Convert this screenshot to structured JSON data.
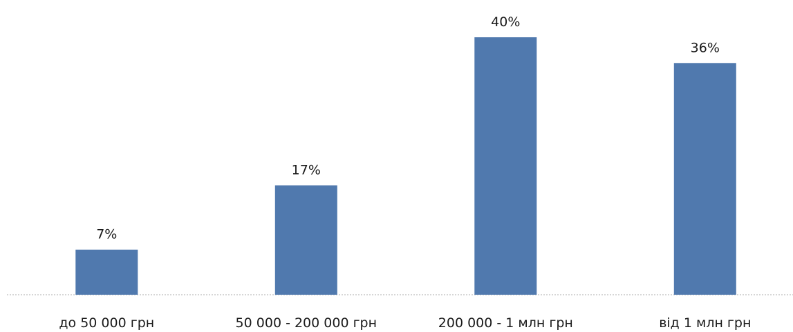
{
  "chart_data": {
    "type": "bar",
    "categories": [
      "до 50 000 грн",
      "50 000 - 200 000 грн",
      "200 000 - 1 млн  грн",
      "від 1 млн грн"
    ],
    "values": [
      7,
      17,
      40,
      36
    ],
    "data_labels": [
      "7%",
      "17%",
      "40%",
      "36%"
    ],
    "unit": "%",
    "title": "",
    "xlabel": "",
    "ylabel": "",
    "ylim": [
      0,
      40
    ],
    "grid": false,
    "legend": "none",
    "colors": {
      "bar": "#5079ae",
      "baseline": "#c8c8c8",
      "text": "#1a1a1a"
    }
  }
}
